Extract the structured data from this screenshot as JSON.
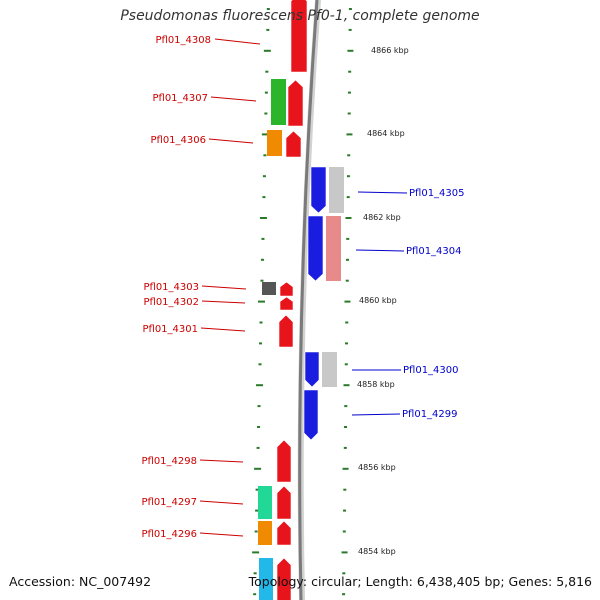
{
  "title": "Pseudomonas fluorescens Pf0-1, complete genome",
  "accession": "Accession: NC_007492",
  "summary": "Topology: circular; Length: 6,438,405 bp; Genes: 5,816",
  "colors": {
    "red": "#e8141b",
    "blue": "#1a1de0",
    "gray": "#8a8a8a",
    "light_gray": "#c8c8c8",
    "pink": "#e88a8a",
    "green": "#2bb52b",
    "orange": "#f08a00",
    "dark_gray": "#555555",
    "teal": "#22d896",
    "cyan": "#22b8e8",
    "tick_green": "#2a7a2a",
    "forward_label": "#cc0000",
    "reverse_label": "#0000cc"
  },
  "tick_labels": [
    "4866 kbp",
    "4864 kbp",
    "4862 kbp",
    "4860 kbp",
    "4858 kbp",
    "4856 kbp",
    "4854 kbp"
  ],
  "genes_forward": [
    {
      "label": "Pfl01_4308",
      "color": "red"
    },
    {
      "label": "Pfl01_4307",
      "color": "red"
    },
    {
      "label": "Pfl01_4306",
      "color": "red"
    },
    {
      "label": "Pfl01_4303",
      "color": "red"
    },
    {
      "label": "Pfl01_4302",
      "color": "red"
    },
    {
      "label": "Pfl01_4301",
      "color": "red"
    },
    {
      "label": "Pfl01_4298",
      "color": "red"
    },
    {
      "label": "Pfl01_4297",
      "color": "red"
    },
    {
      "label": "Pfl01_4296",
      "color": "red"
    }
  ],
  "genes_reverse": [
    {
      "label": "Pfl01_4305",
      "color": "blue"
    },
    {
      "label": "Pfl01_4304",
      "color": "blue"
    },
    {
      "label": "Pfl01_4300",
      "color": "blue"
    },
    {
      "label": "Pfl01_4299",
      "color": "blue"
    }
  ]
}
